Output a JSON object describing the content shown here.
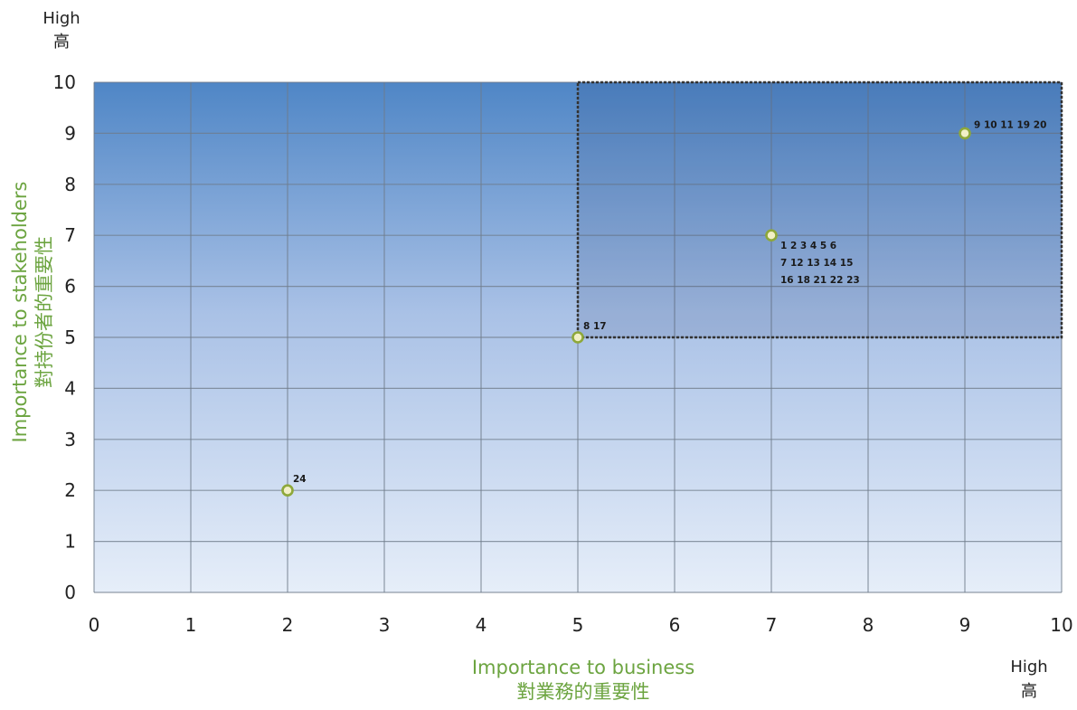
{
  "chart_data": {
    "type": "scatter",
    "xlim": [
      0,
      10
    ],
    "ylim": [
      0,
      10
    ],
    "x_ticks": [
      "0",
      "1",
      "2",
      "3",
      "4",
      "5",
      "6",
      "7",
      "8",
      "9",
      "10"
    ],
    "y_ticks": [
      "0",
      "1",
      "2",
      "3",
      "4",
      "5",
      "6",
      "7",
      "8",
      "9",
      "10"
    ],
    "grid": true,
    "xlabel": "Importance to business",
    "xlabel_zh": "對業務的重要性",
    "ylabel": "Importance to stakeholders",
    "ylabel_zh": "對持份者的重要性",
    "x_high": {
      "en": "High",
      "zh": "高"
    },
    "y_high": {
      "en": "High",
      "zh": "高"
    },
    "highlight_region": {
      "x": [
        5,
        10
      ],
      "y": [
        5,
        10
      ]
    },
    "points": [
      {
        "x": 2,
        "y": 2,
        "label_lines": [
          "24"
        ]
      },
      {
        "x": 5,
        "y": 5,
        "label_lines": [
          "8  17"
        ]
      },
      {
        "x": 7,
        "y": 7,
        "label_lines": [
          "1  2  3  4  5  6",
          "7 12 13 14 15",
          "16 18 21 22 23"
        ]
      },
      {
        "x": 9,
        "y": 9,
        "label_lines": [
          "9  10 11 19 20"
        ]
      }
    ],
    "colors": {
      "bg_top": "#4f86c6",
      "bg_bottom": "#e6eef9",
      "grid": "#6f7b8a",
      "marker_fill": "#f2f0c6",
      "marker_stroke": "#8ea83a",
      "axis_title": "#6ca440"
    }
  }
}
